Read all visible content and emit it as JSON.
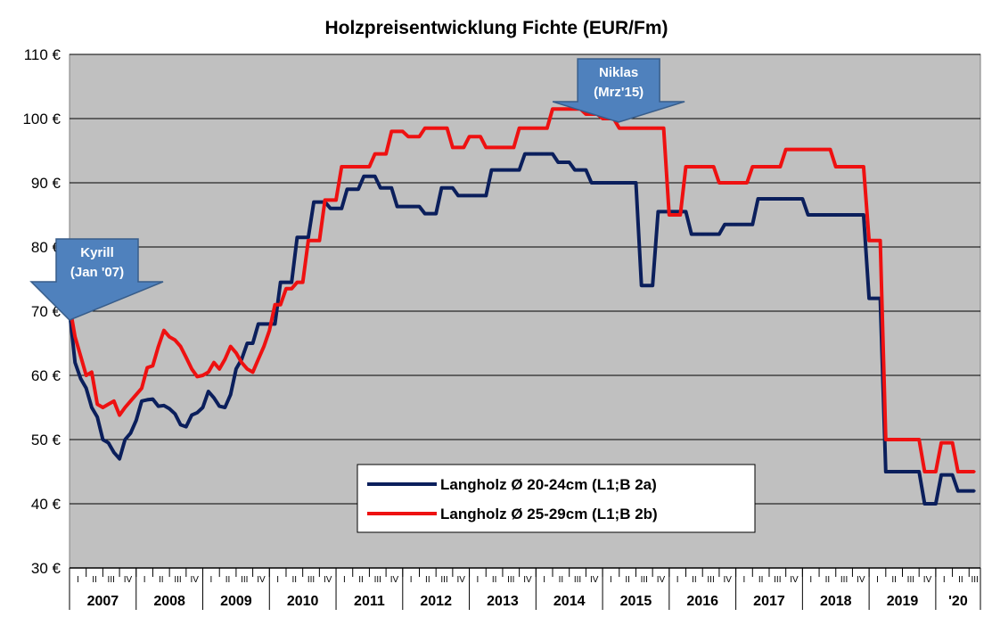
{
  "chart_data": {
    "type": "line",
    "title": "Holzpreisentwicklung Fichte (EUR/Fm)",
    "ylim": [
      30,
      110
    ],
    "y_ticks": [
      "30 €",
      "40 €",
      "50 €",
      "60 €",
      "70 €",
      "80 €",
      "90 €",
      "100 €",
      "110 €"
    ],
    "quarter_labels": [
      "I",
      "II",
      "III",
      "IV"
    ],
    "years": [
      "2007",
      "2008",
      "2009",
      "2010",
      "2011",
      "2012",
      "2013",
      "2014",
      "2015",
      "2016",
      "2017",
      "2018",
      "2019",
      "'20"
    ],
    "grid": true,
    "legend_position": "lower-center",
    "annotations": [
      {
        "line1": "Kyrill",
        "line2": "(Jan '07)",
        "x": 0
      },
      {
        "line1": "Niklas",
        "line2": "(Mrz'15)",
        "x": 98.9
      }
    ],
    "series": [
      {
        "name": "Langholz Ø 20-24cm (L1;B 2a)",
        "color": "#0b1f5c",
        "points": [
          [
            0,
            70
          ],
          [
            1,
            62
          ],
          [
            2,
            59.5
          ],
          [
            3,
            58
          ],
          [
            4,
            55
          ],
          [
            5,
            53.5
          ],
          [
            6,
            50
          ],
          [
            7,
            49.5
          ],
          [
            8,
            48
          ],
          [
            9,
            47
          ],
          [
            10,
            50
          ],
          [
            11,
            51
          ],
          [
            12,
            53
          ],
          [
            13,
            56
          ],
          [
            14,
            56.2
          ],
          [
            15,
            56.3
          ],
          [
            16,
            55.2
          ],
          [
            17,
            55.3
          ],
          [
            18,
            54.8
          ],
          [
            19,
            54
          ],
          [
            20,
            52.3
          ],
          [
            21,
            52
          ],
          [
            22,
            53.8
          ],
          [
            23,
            54.2
          ],
          [
            24,
            55
          ],
          [
            25,
            57.5
          ],
          [
            26,
            56.5
          ],
          [
            27,
            55.2
          ],
          [
            28,
            55
          ],
          [
            29,
            57
          ],
          [
            30,
            61
          ],
          [
            31,
            62.5
          ],
          [
            32,
            65
          ],
          [
            33,
            65
          ],
          [
            34,
            68
          ],
          [
            35,
            68
          ],
          [
            36,
            68
          ],
          [
            37,
            68
          ],
          [
            38,
            74.5
          ],
          [
            39,
            74.5
          ],
          [
            40,
            74.5
          ],
          [
            41,
            81.5
          ],
          [
            42,
            81.5
          ],
          [
            43,
            81.5
          ],
          [
            44,
            87
          ],
          [
            45,
            87
          ],
          [
            46,
            87
          ],
          [
            47,
            86
          ],
          [
            48,
            86
          ],
          [
            49,
            86
          ],
          [
            50,
            89
          ],
          [
            51,
            89
          ],
          [
            52,
            89
          ],
          [
            53,
            91
          ],
          [
            54,
            91
          ],
          [
            55,
            91
          ],
          [
            56,
            89.2
          ],
          [
            57,
            89.2
          ],
          [
            58,
            89.2
          ],
          [
            59,
            86.3
          ],
          [
            60,
            86.3
          ],
          [
            61,
            86.3
          ],
          [
            62,
            86.3
          ],
          [
            63,
            86.3
          ],
          [
            64,
            85.2
          ],
          [
            65,
            85.2
          ],
          [
            66,
            85.2
          ],
          [
            67,
            89.2
          ],
          [
            68,
            89.2
          ],
          [
            69,
            89.2
          ],
          [
            70,
            88
          ],
          [
            71,
            88
          ],
          [
            72,
            88
          ],
          [
            73,
            88
          ],
          [
            74,
            88
          ],
          [
            75,
            88
          ],
          [
            76,
            92
          ],
          [
            77,
            92
          ],
          [
            78,
            92
          ],
          [
            79,
            92
          ],
          [
            80,
            92
          ],
          [
            81,
            92
          ],
          [
            82,
            94.5
          ],
          [
            83,
            94.5
          ],
          [
            84,
            94.5
          ],
          [
            85,
            94.5
          ],
          [
            86,
            94.5
          ],
          [
            87,
            94.5
          ],
          [
            88,
            93.2
          ],
          [
            89,
            93.2
          ],
          [
            90,
            93.2
          ],
          [
            91,
            92
          ],
          [
            92,
            92
          ],
          [
            93,
            92
          ],
          [
            94,
            90
          ],
          [
            95,
            90
          ],
          [
            96,
            90
          ],
          [
            97,
            90
          ],
          [
            98,
            90
          ],
          [
            99,
            90
          ],
          [
            100,
            90
          ],
          [
            101,
            90
          ],
          [
            102,
            90
          ],
          [
            103,
            74
          ],
          [
            104,
            74
          ],
          [
            105,
            74
          ],
          [
            106,
            85.5
          ],
          [
            107,
            85.5
          ],
          [
            108,
            85.5
          ],
          [
            109,
            85.5
          ],
          [
            110,
            85.5
          ],
          [
            111,
            85.5
          ],
          [
            112,
            82
          ],
          [
            113,
            82
          ],
          [
            114,
            82
          ],
          [
            115,
            82
          ],
          [
            116,
            82
          ],
          [
            117,
            82
          ],
          [
            118,
            83.5
          ],
          [
            119,
            83.5
          ],
          [
            120,
            83.5
          ],
          [
            121,
            83.5
          ],
          [
            122,
            83.5
          ],
          [
            123,
            83.5
          ],
          [
            124,
            87.5
          ],
          [
            125,
            87.5
          ],
          [
            126,
            87.5
          ],
          [
            127,
            87.5
          ],
          [
            128,
            87.5
          ],
          [
            129,
            87.5
          ],
          [
            130,
            87.5
          ],
          [
            131,
            87.5
          ],
          [
            132,
            87.5
          ],
          [
            133,
            85
          ],
          [
            134,
            85
          ],
          [
            135,
            85
          ],
          [
            136,
            85
          ],
          [
            137,
            85
          ],
          [
            138,
            85
          ],
          [
            139,
            85
          ],
          [
            140,
            85
          ],
          [
            141,
            85
          ],
          [
            142,
            85
          ],
          [
            143,
            85
          ],
          [
            144,
            72
          ],
          [
            145,
            72
          ],
          [
            146,
            72
          ],
          [
            147,
            45
          ],
          [
            148,
            45
          ],
          [
            149,
            45
          ],
          [
            150,
            45
          ],
          [
            151,
            45
          ],
          [
            152,
            45
          ],
          [
            153,
            45
          ],
          [
            154,
            40
          ],
          [
            155,
            40
          ],
          [
            156,
            40
          ],
          [
            157,
            44.5
          ],
          [
            158,
            44.5
          ],
          [
            159,
            44.5
          ],
          [
            160,
            42
          ],
          [
            161,
            42
          ],
          [
            162,
            42
          ],
          [
            163,
            42
          ]
        ]
      },
      {
        "name": "Langholz Ø 25-29cm (L1;B 2b)",
        "color": "#ee1111",
        "points": [
          [
            0,
            71
          ],
          [
            1,
            66
          ],
          [
            2,
            63
          ],
          [
            3,
            60
          ],
          [
            4,
            60.5
          ],
          [
            5,
            55.5
          ],
          [
            6,
            55
          ],
          [
            7,
            55.5
          ],
          [
            8,
            56
          ],
          [
            9,
            53.8
          ],
          [
            10,
            55
          ],
          [
            11,
            56
          ],
          [
            12,
            57
          ],
          [
            13,
            58
          ],
          [
            14,
            61.2
          ],
          [
            15,
            61.5
          ],
          [
            16,
            64.5
          ],
          [
            17,
            67
          ],
          [
            18,
            66
          ],
          [
            19,
            65.5
          ],
          [
            20,
            64.5
          ],
          [
            21,
            62.8
          ],
          [
            22,
            61
          ],
          [
            23,
            59.8
          ],
          [
            24,
            60
          ],
          [
            25,
            60.5
          ],
          [
            26,
            62
          ],
          [
            27,
            61
          ],
          [
            28,
            62.5
          ],
          [
            29,
            64.5
          ],
          [
            30,
            63.5
          ],
          [
            31,
            62
          ],
          [
            32,
            61
          ],
          [
            33,
            60.5
          ],
          [
            34,
            62.5
          ],
          [
            35,
            64.5
          ],
          [
            36,
            67
          ],
          [
            37,
            71
          ],
          [
            38,
            71
          ],
          [
            39,
            73.5
          ],
          [
            40,
            73.5
          ],
          [
            41,
            74.5
          ],
          [
            42,
            74.5
          ],
          [
            43,
            81
          ],
          [
            44,
            81
          ],
          [
            45,
            81
          ],
          [
            46,
            87.3
          ],
          [
            47,
            87.3
          ],
          [
            48,
            87.3
          ],
          [
            49,
            92.5
          ],
          [
            50,
            92.5
          ],
          [
            51,
            92.5
          ],
          [
            52,
            92.5
          ],
          [
            53,
            92.5
          ],
          [
            54,
            92.5
          ],
          [
            55,
            94.5
          ],
          [
            56,
            94.5
          ],
          [
            57,
            94.5
          ],
          [
            58,
            98
          ],
          [
            59,
            98
          ],
          [
            60,
            98
          ],
          [
            61,
            97.2
          ],
          [
            62,
            97.2
          ],
          [
            63,
            97.2
          ],
          [
            64,
            98.5
          ],
          [
            65,
            98.5
          ],
          [
            66,
            98.5
          ],
          [
            67,
            98.5
          ],
          [
            68,
            98.5
          ],
          [
            69,
            95.5
          ],
          [
            70,
            95.5
          ],
          [
            71,
            95.5
          ],
          [
            72,
            97.2
          ],
          [
            73,
            97.2
          ],
          [
            74,
            97.2
          ],
          [
            75,
            95.5
          ],
          [
            76,
            95.5
          ],
          [
            77,
            95.5
          ],
          [
            78,
            95.5
          ],
          [
            79,
            95.5
          ],
          [
            80,
            95.5
          ],
          [
            81,
            98.5
          ],
          [
            82,
            98.5
          ],
          [
            83,
            98.5
          ],
          [
            84,
            98.5
          ],
          [
            85,
            98.5
          ],
          [
            86,
            98.5
          ],
          [
            87,
            101.5
          ],
          [
            88,
            101.5
          ],
          [
            89,
            101.5
          ],
          [
            90,
            101.5
          ],
          [
            91,
            101.5
          ],
          [
            92,
            101.5
          ],
          [
            93,
            100.7
          ],
          [
            94,
            100.7
          ],
          [
            95,
            100.7
          ],
          [
            96,
            100
          ],
          [
            97,
            100
          ],
          [
            98,
            100
          ],
          [
            99,
            98.5
          ],
          [
            100,
            98.5
          ],
          [
            101,
            98.5
          ],
          [
            102,
            98.5
          ],
          [
            103,
            98.5
          ],
          [
            104,
            98.5
          ],
          [
            105,
            98.5
          ],
          [
            106,
            98.5
          ],
          [
            107,
            98.5
          ],
          [
            108,
            85
          ],
          [
            109,
            85
          ],
          [
            110,
            85
          ],
          [
            111,
            92.5
          ],
          [
            112,
            92.5
          ],
          [
            113,
            92.5
          ],
          [
            114,
            92.5
          ],
          [
            115,
            92.5
          ],
          [
            116,
            92.5
          ],
          [
            117,
            90
          ],
          [
            118,
            90
          ],
          [
            119,
            90
          ],
          [
            120,
            90
          ],
          [
            121,
            90
          ],
          [
            122,
            90
          ],
          [
            123,
            92.5
          ],
          [
            124,
            92.5
          ],
          [
            125,
            92.5
          ],
          [
            126,
            92.5
          ],
          [
            127,
            92.5
          ],
          [
            128,
            92.5
          ],
          [
            129,
            95.2
          ],
          [
            130,
            95.2
          ],
          [
            131,
            95.2
          ],
          [
            132,
            95.2
          ],
          [
            133,
            95.2
          ],
          [
            134,
            95.2
          ],
          [
            135,
            95.2
          ],
          [
            136,
            95.2
          ],
          [
            137,
            95.2
          ],
          [
            138,
            92.5
          ],
          [
            139,
            92.5
          ],
          [
            140,
            92.5
          ],
          [
            141,
            92.5
          ],
          [
            142,
            92.5
          ],
          [
            143,
            92.5
          ],
          [
            144,
            81
          ],
          [
            145,
            81
          ],
          [
            146,
            81
          ],
          [
            147,
            50
          ],
          [
            148,
            50
          ],
          [
            149,
            50
          ],
          [
            150,
            50
          ],
          [
            151,
            50
          ],
          [
            152,
            50
          ],
          [
            153,
            50
          ],
          [
            154,
            45
          ],
          [
            155,
            45
          ],
          [
            156,
            45
          ],
          [
            157,
            49.5
          ],
          [
            158,
            49.5
          ],
          [
            159,
            49.5
          ],
          [
            160,
            45
          ],
          [
            161,
            45
          ],
          [
            162,
            45
          ],
          [
            163,
            45
          ]
        ]
      }
    ]
  }
}
